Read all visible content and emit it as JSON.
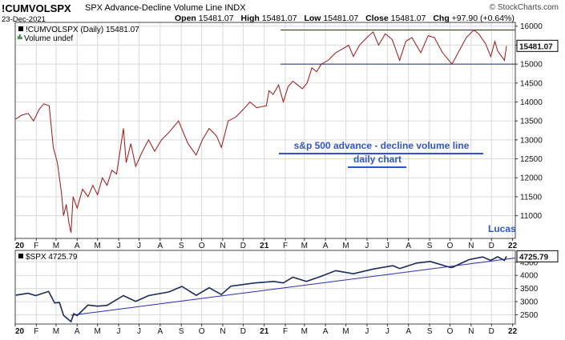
{
  "header": {
    "symbol": "!CUMVOLSPX",
    "subtitle": "SPX Advance-Decline Volume Line  INDX",
    "date": "23-Dec-2021",
    "open_label": "Open",
    "open": "15481.07",
    "high_label": "High",
    "high": "15481.07",
    "low_label": "Low",
    "low": "15481.07",
    "close_label": "Close",
    "close": "15481.07",
    "chg_label": "Chg",
    "chg": "+97.90 (+0.64%)",
    "brand": "© StockCharts.com"
  },
  "panel_top": {
    "legend": "!CUMVOLSPX (Daily) 15481.07",
    "volume_legend": "Volume undef",
    "last_value_label": "15481.07",
    "annotation_line1": "s&p 500 advance - decline volume line",
    "annotation_line2": "daily chart",
    "author": "Lucas"
  },
  "panel_bottom": {
    "legend": "$SPX 4725.79",
    "last_value_label": "4725.79"
  },
  "colors": {
    "adline": "#9e1414",
    "spx": "#1a2a5a",
    "trend": "#2b2bb0",
    "grid": "#dadada",
    "annotation": "#3355cc",
    "frame": "#444444"
  },
  "chart_data": [
    {
      "type": "line",
      "series": [
        {
          "values": [
            {
              "x": "2020-01-02",
              "y": 13550
            },
            {
              "x": "2020-01-10",
              "y": 13650
            },
            {
              "x": "2020-01-20",
              "y": 13700
            },
            {
              "x": "2020-01-28",
              "y": 13500
            },
            {
              "x": "2020-02-05",
              "y": 13800
            },
            {
              "x": "2020-02-12",
              "y": 13950
            },
            {
              "x": "2020-02-20",
              "y": 13900
            },
            {
              "x": "2020-02-26",
              "y": 12800
            },
            {
              "x": "2020-03-03",
              "y": 12400
            },
            {
              "x": "2020-03-09",
              "y": 11600
            },
            {
              "x": "2020-03-12",
              "y": 11000
            },
            {
              "x": "2020-03-16",
              "y": 11300
            },
            {
              "x": "2020-03-20",
              "y": 10800
            },
            {
              "x": "2020-03-23",
              "y": 10550
            },
            {
              "x": "2020-03-26",
              "y": 11500
            },
            {
              "x": "2020-04-01",
              "y": 11200
            },
            {
              "x": "2020-04-09",
              "y": 11700
            },
            {
              "x": "2020-04-17",
              "y": 11500
            },
            {
              "x": "2020-04-24",
              "y": 11800
            },
            {
              "x": "2020-05-01",
              "y": 11550
            },
            {
              "x": "2020-05-08",
              "y": 12000
            },
            {
              "x": "2020-05-15",
              "y": 11800
            },
            {
              "x": "2020-05-22",
              "y": 12200
            },
            {
              "x": "2020-05-29",
              "y": 12100
            },
            {
              "x": "2020-06-08",
              "y": 13300
            },
            {
              "x": "2020-06-12",
              "y": 12400
            },
            {
              "x": "2020-06-19",
              "y": 12900
            },
            {
              "x": "2020-06-26",
              "y": 12300
            },
            {
              "x": "2020-07-06",
              "y": 12700
            },
            {
              "x": "2020-07-15",
              "y": 13000
            },
            {
              "x": "2020-07-24",
              "y": 12700
            },
            {
              "x": "2020-08-03",
              "y": 13000
            },
            {
              "x": "2020-08-14",
              "y": 13200
            },
            {
              "x": "2020-08-28",
              "y": 13500
            },
            {
              "x": "2020-09-04",
              "y": 13200
            },
            {
              "x": "2020-09-11",
              "y": 12900
            },
            {
              "x": "2020-09-23",
              "y": 12600
            },
            {
              "x": "2020-10-02",
              "y": 13000
            },
            {
              "x": "2020-10-12",
              "y": 13300
            },
            {
              "x": "2020-10-23",
              "y": 13100
            },
            {
              "x": "2020-10-30",
              "y": 12800
            },
            {
              "x": "2020-11-09",
              "y": 13500
            },
            {
              "x": "2020-11-20",
              "y": 13600
            },
            {
              "x": "2020-12-01",
              "y": 13800
            },
            {
              "x": "2020-12-11",
              "y": 14000
            },
            {
              "x": "2020-12-21",
              "y": 13850
            },
            {
              "x": "2021-01-04",
              "y": 13900
            },
            {
              "x": "2021-01-08",
              "y": 14300
            },
            {
              "x": "2021-01-14",
              "y": 14200
            },
            {
              "x": "2021-01-22",
              "y": 14450
            },
            {
              "x": "2021-01-29",
              "y": 14000
            },
            {
              "x": "2021-02-05",
              "y": 14400
            },
            {
              "x": "2021-02-12",
              "y": 14550
            },
            {
              "x": "2021-02-19",
              "y": 14450
            },
            {
              "x": "2021-02-26",
              "y": 14350
            },
            {
              "x": "2021-03-05",
              "y": 14500
            },
            {
              "x": "2021-03-12",
              "y": 14900
            },
            {
              "x": "2021-03-19",
              "y": 14800
            },
            {
              "x": "2021-03-26",
              "y": 15000
            },
            {
              "x": "2021-04-05",
              "y": 15100
            },
            {
              "x": "2021-04-16",
              "y": 15300
            },
            {
              "x": "2021-04-26",
              "y": 15400
            },
            {
              "x": "2021-05-05",
              "y": 15500
            },
            {
              "x": "2021-05-12",
              "y": 15200
            },
            {
              "x": "2021-05-21",
              "y": 15500
            },
            {
              "x": "2021-06-01",
              "y": 15700
            },
            {
              "x": "2021-06-10",
              "y": 15850
            },
            {
              "x": "2021-06-18",
              "y": 15500
            },
            {
              "x": "2021-06-28",
              "y": 15800
            },
            {
              "x": "2021-07-08",
              "y": 15650
            },
            {
              "x": "2021-07-19",
              "y": 15100
            },
            {
              "x": "2021-07-28",
              "y": 15600
            },
            {
              "x": "2021-08-06",
              "y": 15700
            },
            {
              "x": "2021-08-19",
              "y": 15300
            },
            {
              "x": "2021-08-30",
              "y": 15750
            },
            {
              "x": "2021-09-08",
              "y": 15700
            },
            {
              "x": "2021-09-20",
              "y": 15300
            },
            {
              "x": "2021-10-04",
              "y": 15000
            },
            {
              "x": "2021-10-13",
              "y": 15300
            },
            {
              "x": "2021-10-25",
              "y": 15700
            },
            {
              "x": "2021-11-05",
              "y": 15900
            },
            {
              "x": "2021-11-12",
              "y": 15800
            },
            {
              "x": "2021-11-22",
              "y": 15550
            },
            {
              "x": "2021-11-30",
              "y": 15200
            },
            {
              "x": "2021-12-06",
              "y": 15600
            },
            {
              "x": "2021-12-10",
              "y": 15350
            },
            {
              "x": "2021-12-20",
              "y": 15100
            },
            {
              "x": "2021-12-23",
              "y": 15481
            }
          ]
        }
      ],
      "trendlines": [
        {
          "x": [
            "2021-01-25",
            "2022-01-05"
          ],
          "y": [
            15900,
            15900
          ]
        },
        {
          "x": [
            "2021-01-25",
            "2022-01-05"
          ],
          "y": [
            15000,
            15000
          ]
        }
      ],
      "xlabel": "",
      "ylabel": "",
      "xlim": [
        "2020-01-01",
        "2022-01-05"
      ],
      "ylim": [
        10400,
        16100
      ],
      "y_ticks": [
        11000,
        11500,
        12000,
        12500,
        13000,
        13500,
        14000,
        14500,
        15000,
        15500,
        16000
      ],
      "x_ticks": [
        {
          "date": "2020-01-01",
          "label": "20",
          "bold": true
        },
        {
          "date": "2020-02-01",
          "label": "F"
        },
        {
          "date": "2020-03-01",
          "label": "M"
        },
        {
          "date": "2020-04-01",
          "label": "A"
        },
        {
          "date": "2020-05-01",
          "label": "M"
        },
        {
          "date": "2020-06-01",
          "label": "J"
        },
        {
          "date": "2020-07-01",
          "label": "J"
        },
        {
          "date": "2020-08-01",
          "label": "A"
        },
        {
          "date": "2020-09-01",
          "label": "S"
        },
        {
          "date": "2020-10-01",
          "label": "O"
        },
        {
          "date": "2020-11-01",
          "label": "N"
        },
        {
          "date": "2020-12-01",
          "label": "D"
        },
        {
          "date": "2021-01-01",
          "label": "21",
          "bold": true
        },
        {
          "date": "2021-02-01",
          "label": "F"
        },
        {
          "date": "2021-03-01",
          "label": "M"
        },
        {
          "date": "2021-04-01",
          "label": "A"
        },
        {
          "date": "2021-05-01",
          "label": "M"
        },
        {
          "date": "2021-06-01",
          "label": "J"
        },
        {
          "date": "2021-07-01",
          "label": "J"
        },
        {
          "date": "2021-08-01",
          "label": "A"
        },
        {
          "date": "2021-09-01",
          "label": "S"
        },
        {
          "date": "2021-10-01",
          "label": "O"
        },
        {
          "date": "2021-11-01",
          "label": "N"
        },
        {
          "date": "2021-12-01",
          "label": "D"
        },
        {
          "date": "2022-01-01",
          "label": "22",
          "bold": true
        }
      ],
      "grid": true
    },
    {
      "type": "line",
      "series": [
        {
          "values": [
            {
              "x": "2020-01-02",
              "y": 3250
            },
            {
              "x": "2020-01-20",
              "y": 3320
            },
            {
              "x": "2020-01-31",
              "y": 3230
            },
            {
              "x": "2020-02-19",
              "y": 3390
            },
            {
              "x": "2020-02-28",
              "y": 2950
            },
            {
              "x": "2020-03-06",
              "y": 2970
            },
            {
              "x": "2020-03-12",
              "y": 2480
            },
            {
              "x": "2020-03-16",
              "y": 2390
            },
            {
              "x": "2020-03-23",
              "y": 2240
            },
            {
              "x": "2020-03-27",
              "y": 2540
            },
            {
              "x": "2020-04-01",
              "y": 2470
            },
            {
              "x": "2020-04-17",
              "y": 2870
            },
            {
              "x": "2020-05-01",
              "y": 2830
            },
            {
              "x": "2020-05-15",
              "y": 2860
            },
            {
              "x": "2020-06-08",
              "y": 3230
            },
            {
              "x": "2020-06-26",
              "y": 3010
            },
            {
              "x": "2020-07-15",
              "y": 3230
            },
            {
              "x": "2020-08-14",
              "y": 3370
            },
            {
              "x": "2020-09-02",
              "y": 3580
            },
            {
              "x": "2020-09-23",
              "y": 3240
            },
            {
              "x": "2020-10-12",
              "y": 3530
            },
            {
              "x": "2020-10-30",
              "y": 3270
            },
            {
              "x": "2020-11-13",
              "y": 3590
            },
            {
              "x": "2020-12-18",
              "y": 3710
            },
            {
              "x": "2021-01-15",
              "y": 3770
            },
            {
              "x": "2021-01-29",
              "y": 3710
            },
            {
              "x": "2021-02-12",
              "y": 3930
            },
            {
              "x": "2021-03-04",
              "y": 3770
            },
            {
              "x": "2021-03-26",
              "y": 3970
            },
            {
              "x": "2021-04-16",
              "y": 4180
            },
            {
              "x": "2021-05-12",
              "y": 4060
            },
            {
              "x": "2021-06-10",
              "y": 4240
            },
            {
              "x": "2021-07-09",
              "y": 4370
            },
            {
              "x": "2021-07-19",
              "y": 4260
            },
            {
              "x": "2021-08-13",
              "y": 4470
            },
            {
              "x": "2021-09-02",
              "y": 4530
            },
            {
              "x": "2021-09-30",
              "y": 4310
            },
            {
              "x": "2021-10-04",
              "y": 4300
            },
            {
              "x": "2021-10-29",
              "y": 4600
            },
            {
              "x": "2021-11-18",
              "y": 4700
            },
            {
              "x": "2021-11-30",
              "y": 4570
            },
            {
              "x": "2021-12-10",
              "y": 4710
            },
            {
              "x": "2021-12-20",
              "y": 4570
            },
            {
              "x": "2021-12-23",
              "y": 4725.79
            }
          ]
        }
      ],
      "trendlines": [
        {
          "x": [
            "2020-03-23",
            "2022-01-05"
          ],
          "y": [
            2480,
            4660
          ]
        }
      ],
      "xlabel": "",
      "ylabel": "",
      "xlim": [
        "2020-01-01",
        "2022-01-05"
      ],
      "ylim": [
        2150,
        4950
      ],
      "y_ticks": [
        2500,
        3000,
        3500,
        4000,
        4500
      ],
      "x_ticks": [
        {
          "date": "2020-01-01",
          "label": "20",
          "bold": true
        },
        {
          "date": "2020-02-01",
          "label": "F"
        },
        {
          "date": "2020-03-01",
          "label": "M"
        },
        {
          "date": "2020-04-01",
          "label": "A"
        },
        {
          "date": "2020-05-01",
          "label": "M"
        },
        {
          "date": "2020-06-01",
          "label": "J"
        },
        {
          "date": "2020-07-01",
          "label": "J"
        },
        {
          "date": "2020-08-01",
          "label": "A"
        },
        {
          "date": "2020-09-01",
          "label": "S"
        },
        {
          "date": "2020-10-01",
          "label": "O"
        },
        {
          "date": "2020-11-01",
          "label": "N"
        },
        {
          "date": "2020-12-01",
          "label": "D"
        },
        {
          "date": "2021-01-01",
          "label": "21",
          "bold": true
        },
        {
          "date": "2021-02-01",
          "label": "F"
        },
        {
          "date": "2021-03-01",
          "label": "M"
        },
        {
          "date": "2021-04-01",
          "label": "A"
        },
        {
          "date": "2021-05-01",
          "label": "M"
        },
        {
          "date": "2021-06-01",
          "label": "J"
        },
        {
          "date": "2021-07-01",
          "label": "J"
        },
        {
          "date": "2021-08-01",
          "label": "A"
        },
        {
          "date": "2021-09-01",
          "label": "S"
        },
        {
          "date": "2021-10-01",
          "label": "O"
        },
        {
          "date": "2021-11-01",
          "label": "N"
        },
        {
          "date": "2021-12-01",
          "label": "D"
        },
        {
          "date": "2022-01-01",
          "label": "22",
          "bold": true
        }
      ],
      "grid": true
    }
  ]
}
